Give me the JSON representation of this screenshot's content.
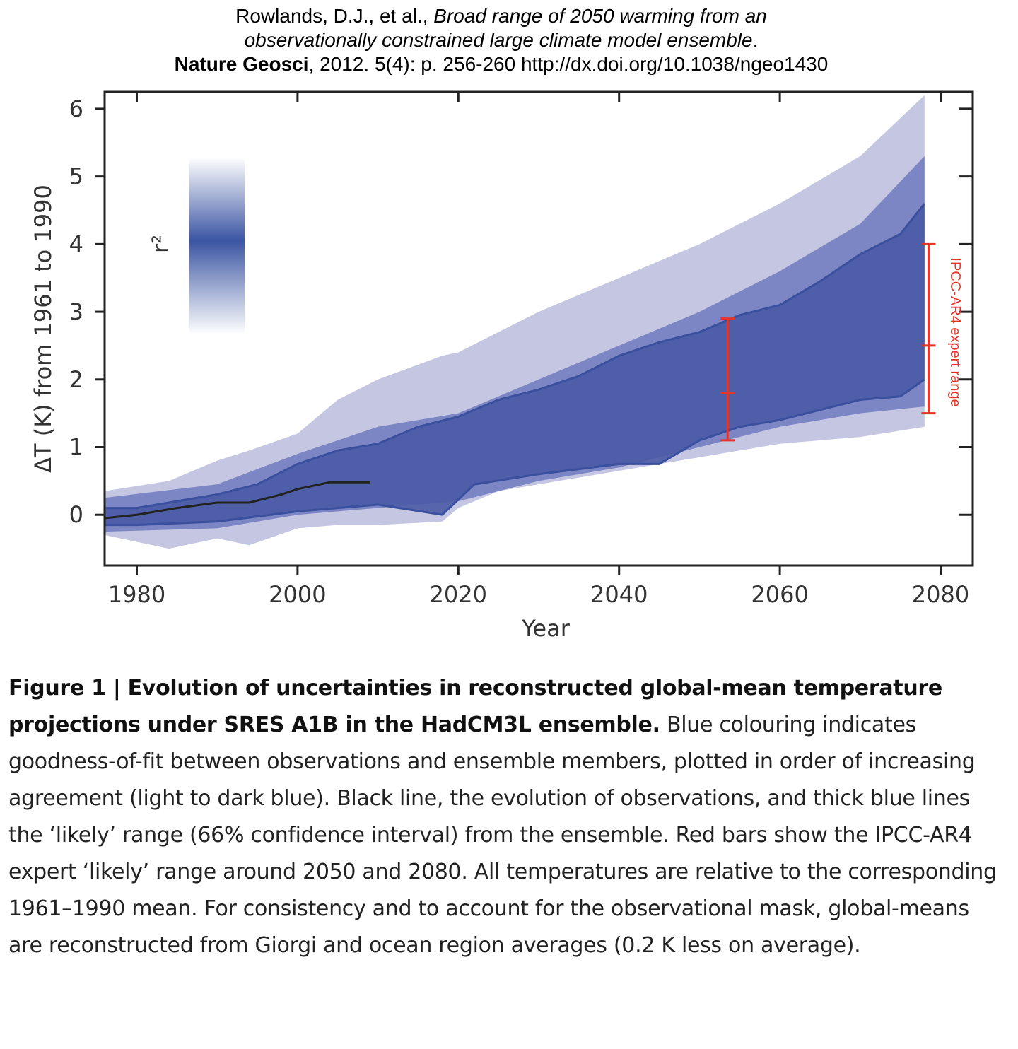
{
  "citation": {
    "line1_plain": "Rowlands, D.J., et al., ",
    "line1_italic": "Broad range of 2050 warming from an",
    "line2_italic": "observationally constrained large climate model ensemble",
    "line2_plain": ".",
    "line3_bold": "Nature Geosci",
    "line3_plain": ", 2012. 5(4): p. 256-260 http://dx.doi.org/10.1038/ngeo1430"
  },
  "chart_data": {
    "type": "area",
    "xlabel": "Year",
    "ylabel": "ΔT (K) from 1961 to 1990",
    "xlim": [
      1976,
      2084
    ],
    "ylim": [
      -0.75,
      6.25
    ],
    "xticks": [
      1980,
      2000,
      2020,
      2040,
      2060,
      2080
    ],
    "yticks": [
      0,
      1,
      2,
      3,
      4,
      5,
      6
    ],
    "colorbar_label": "r²",
    "colors": {
      "light": "#c4c6e2",
      "mid": "#7d86c4",
      "dark": "#4a5aa6",
      "likely": "#3a4f9e",
      "obs": "#222222",
      "ipcc": "#e8332b"
    },
    "ensemble_envelope": {
      "x": [
        1976,
        1984,
        1990,
        1994,
        2000,
        2005,
        2010,
        2018,
        2020,
        2025,
        2030,
        2035,
        2040,
        2045,
        2050,
        2055,
        2060,
        2065,
        2070,
        2078
      ],
      "upper": [
        0.35,
        0.5,
        0.8,
        0.95,
        1.2,
        1.7,
        2.0,
        2.35,
        2.4,
        2.7,
        3.0,
        3.25,
        3.5,
        3.75,
        4.0,
        4.3,
        4.6,
        4.95,
        5.3,
        6.2
      ],
      "lower": [
        -0.3,
        -0.5,
        -0.35,
        -0.45,
        -0.2,
        -0.15,
        -0.15,
        -0.1,
        0.1,
        0.35,
        0.45,
        0.55,
        0.65,
        0.75,
        0.85,
        0.95,
        1.05,
        1.1,
        1.15,
        1.3
      ]
    },
    "high_agreement_band": {
      "x": [
        1976,
        1990,
        2000,
        2010,
        2020,
        2030,
        2040,
        2050,
        2060,
        2070,
        2078
      ],
      "upper": [
        0.25,
        0.45,
        0.9,
        1.3,
        1.5,
        2.0,
        2.5,
        3.0,
        3.6,
        4.3,
        5.3
      ],
      "lower": [
        -0.25,
        -0.2,
        0.0,
        0.1,
        0.2,
        0.5,
        0.7,
        1.0,
        1.3,
        1.5,
        1.6
      ]
    },
    "series": [
      {
        "role": "likely-upper",
        "x": [
          1976,
          1980,
          1990,
          1995,
          2000,
          2005,
          2010,
          2015,
          2020,
          2025,
          2030,
          2035,
          2040,
          2045,
          2050,
          2055,
          2060,
          2065,
          2070,
          2075,
          2078
        ],
        "y": [
          0.1,
          0.1,
          0.3,
          0.45,
          0.75,
          0.95,
          1.05,
          1.3,
          1.45,
          1.7,
          1.85,
          2.05,
          2.35,
          2.55,
          2.7,
          2.95,
          3.1,
          3.45,
          3.85,
          4.15,
          4.6
        ]
      },
      {
        "role": "likely-lower",
        "x": [
          1976,
          1980,
          1990,
          2000,
          2010,
          2018,
          2022,
          2030,
          2040,
          2045,
          2050,
          2055,
          2060,
          2065,
          2070,
          2075,
          2078
        ],
        "y": [
          -0.15,
          -0.15,
          -0.1,
          0.05,
          0.15,
          0.0,
          0.45,
          0.6,
          0.75,
          0.75,
          1.1,
          1.3,
          1.4,
          1.55,
          1.7,
          1.75,
          2.0
        ]
      },
      {
        "role": "observations",
        "x": [
          1976,
          1980,
          1985,
          1990,
          1994,
          1998,
          2000,
          2004,
          2009
        ],
        "y": [
          -0.05,
          0.0,
          0.1,
          0.18,
          0.18,
          0.3,
          0.38,
          0.48,
          0.48
        ]
      }
    ],
    "error_bars": [
      {
        "x": 2053.5,
        "low": 1.1,
        "mid": 1.8,
        "high": 2.9
      },
      {
        "x": 2078.5,
        "low": 1.5,
        "mid": 2.5,
        "high": 4.0
      }
    ],
    "annotation": "IPCC-AR4 expert range"
  },
  "caption": {
    "bold": "Figure 1 | Evolution of uncertainties in reconstructed global-mean temperature projections under SRES A1B in the HadCM3L ensemble.",
    "text": " Blue colouring indicates goodness-of-fit between observations and ensemble members, plotted in order of increasing agreement (light to dark blue). Black line, the evolution of observations, and thick blue lines the ‘likely’ range (66% confidence interval) from the ensemble. Red bars show the IPCC-AR4 expert ‘likely’ range around 2050 and 2080. All temperatures are relative to the corresponding 1961–1990 mean. For consistency and to account for the observational mask, global-means are reconstructed from Giorgi and ocean region averages (0.2 K less on average)."
  }
}
